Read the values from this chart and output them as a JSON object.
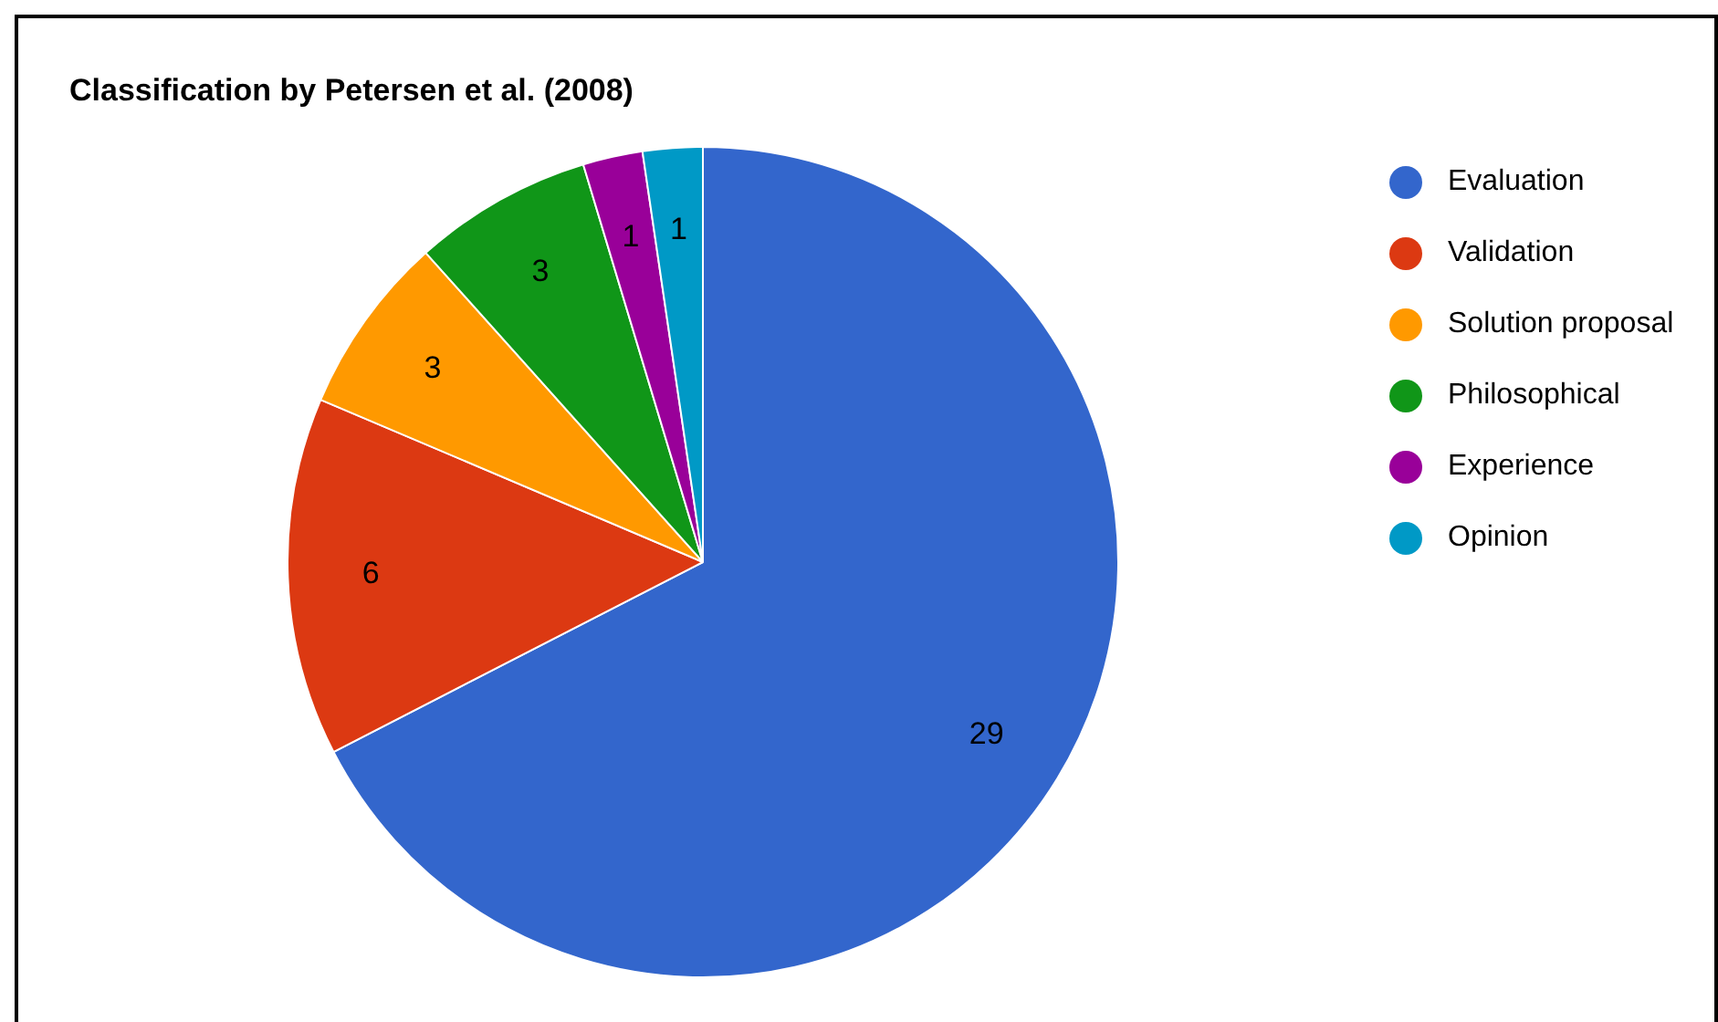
{
  "chart_data": {
    "type": "pie",
    "title": "Classification by Petersen et al. (2008)",
    "categories": [
      "Evaluation",
      "Validation",
      "Solution proposal",
      "Philosophical",
      "Experience",
      "Opinion"
    ],
    "values": [
      29,
      6,
      3,
      3,
      1,
      1
    ],
    "colors": [
      "#3366cc",
      "#dc3912",
      "#ff9900",
      "#109618",
      "#990099",
      "#0099c6"
    ],
    "data_labels": true,
    "legend": "right"
  }
}
